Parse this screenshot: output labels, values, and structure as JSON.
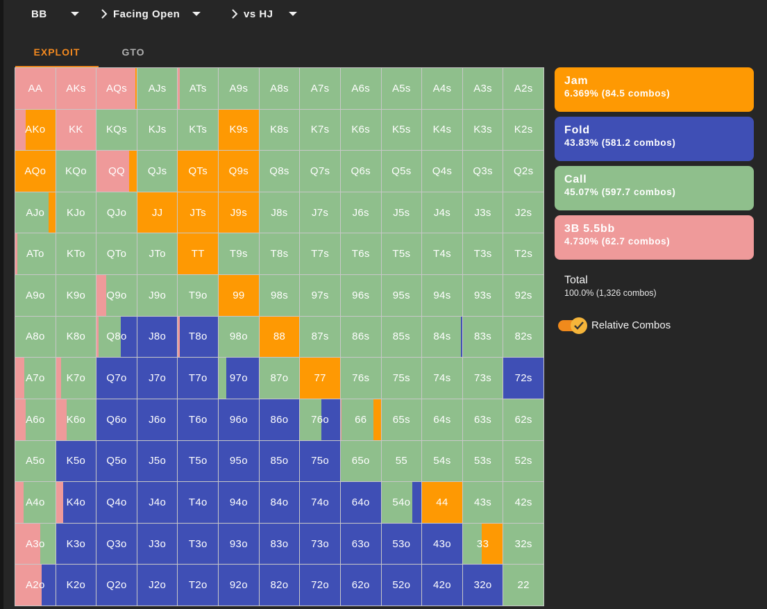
{
  "nav": {
    "position": "BB",
    "situation": "Facing Open",
    "opponent": "vs HJ"
  },
  "tabs": [
    {
      "label": "EXPLOIT",
      "active": true
    },
    {
      "label": "GTO",
      "active": false
    }
  ],
  "colors": {
    "jam": "#fe9903",
    "fold": "#3f4fb5",
    "call": "#8fbf8c",
    "raise": "#ef9a9a"
  },
  "actions": [
    {
      "name": "Jam",
      "stat": "6.369% (84.5 combos)",
      "color": "#fe9903"
    },
    {
      "name": "Fold",
      "stat": "43.83% (581.2 combos)",
      "color": "#3f4fb5"
    },
    {
      "name": "Call",
      "stat": "45.07% (597.7 combos)",
      "color": "#8fbf8c"
    },
    {
      "name": "3B 5.5bb",
      "stat": "4.730% (62.7 combos)",
      "color": "#ef9a9a"
    }
  ],
  "total": {
    "label": "Total",
    "stat": "100.0% (1,326 combos)"
  },
  "relative_combos": {
    "label": "Relative Combos",
    "enabled": true
  },
  "grid": {
    "ranks": [
      "A",
      "K",
      "Q",
      "J",
      "T",
      "9",
      "8",
      "7",
      "6",
      "5",
      "4",
      "3",
      "2"
    ],
    "strategy_order": [
      "raise",
      "call",
      "fold",
      "jam"
    ],
    "overrides": {
      "AA": {
        "raise": 1
      },
      "AKs": {
        "raise": 1
      },
      "AQs": {
        "raise": 0.96,
        "jam": 0.04
      },
      "ATs": {
        "raise": 0.04,
        "call": 0.96
      },
      "AKo": {
        "raise": 0.26,
        "jam": 0.74
      },
      "KK": {
        "raise": 1
      },
      "K9s": {
        "jam": 1
      },
      "AQo": {
        "jam": 1
      },
      "QQ": {
        "raise": 0.82,
        "jam": 0.18
      },
      "QTs": {
        "jam": 1
      },
      "Q9s": {
        "jam": 1
      },
      "AJo": {
        "call": 0.84,
        "jam": 0.16
      },
      "JJ": {
        "jam": 1
      },
      "JTs": {
        "jam": 1
      },
      "J9s": {
        "jam": 1
      },
      "ATo": {
        "raise": 0.05,
        "call": 0.95
      },
      "TT": {
        "jam": 1
      },
      "Q9o": {
        "raise": 0.24,
        "call": 0.76
      },
      "99": {
        "jam": 1
      },
      "Q8o": {
        "raise": 0.05,
        "call": 0.55,
        "fold": 0.4
      },
      "J8o": {
        "fold": 1
      },
      "T8o": {
        "raise": 0.05,
        "fold": 0.95
      },
      "88": {
        "jam": 1
      },
      "84s": {
        "call": 0.97,
        "fold": 0.03
      },
      "A7o": {
        "raise": 0.22,
        "call": 0.78
      },
      "K7o": {
        "raise": 0.12,
        "call": 0.88
      },
      "Q7o": {
        "fold": 1
      },
      "J7o": {
        "fold": 1
      },
      "T7o": {
        "fold": 1
      },
      "97o": {
        "call": 0.19,
        "fold": 0.81
      },
      "77": {
        "jam": 1
      },
      "72s": {
        "fold": 1
      },
      "A6o": {
        "raise": 0.26,
        "call": 0.74
      },
      "K6o": {
        "raise": 0.27,
        "call": 0.73
      },
      "Q6o": {
        "fold": 1
      },
      "J6o": {
        "fold": 1
      },
      "T6o": {
        "fold": 1
      },
      "96o": {
        "fold": 1
      },
      "86o": {
        "fold": 1
      },
      "76o": {
        "call": 0.53,
        "fold": 0.47
      },
      "66": {
        "raise": 0.02,
        "call": 0.8,
        "jam": 0.18
      },
      "K5o": {
        "fold": 1
      },
      "Q5o": {
        "fold": 1
      },
      "J5o": {
        "fold": 1
      },
      "T5o": {
        "fold": 1
      },
      "95o": {
        "fold": 1
      },
      "85o": {
        "fold": 1
      },
      "75o": {
        "fold": 1
      },
      "A4o": {
        "raise": 0.2,
        "call": 0.8
      },
      "K4o": {
        "raise": 0.18,
        "fold": 0.82
      },
      "Q4o": {
        "fold": 1
      },
      "J4o": {
        "fold": 1
      },
      "T4o": {
        "fold": 1
      },
      "94o": {
        "fold": 1
      },
      "84o": {
        "fold": 1
      },
      "74o": {
        "fold": 1
      },
      "64o": {
        "fold": 1
      },
      "54o": {
        "call": 0.78,
        "fold": 0.22
      },
      "44": {
        "jam": 1
      },
      "A3o": {
        "raise": 0.62,
        "call": 0.38
      },
      "K3o": {
        "fold": 1
      },
      "Q3o": {
        "fold": 1
      },
      "J3o": {
        "fold": 1
      },
      "T3o": {
        "fold": 1
      },
      "93o": {
        "fold": 1
      },
      "83o": {
        "fold": 1
      },
      "73o": {
        "fold": 1
      },
      "63o": {
        "fold": 1
      },
      "53o": {
        "fold": 1
      },
      "43o": {
        "fold": 1
      },
      "33": {
        "call": 0.48,
        "jam": 0.52
      },
      "A2o": {
        "raise": 0.66,
        "fold": 0.34
      },
      "K2o": {
        "fold": 1
      },
      "Q2o": {
        "fold": 1
      },
      "J2o": {
        "fold": 1
      },
      "T2o": {
        "fold": 1
      },
      "92o": {
        "fold": 1
      },
      "82o": {
        "fold": 1
      },
      "72o": {
        "fold": 1
      },
      "62o": {
        "fold": 1
      },
      "52o": {
        "fold": 1
      },
      "42o": {
        "fold": 1
      },
      "32o": {
        "fold": 1
      }
    },
    "default": {
      "call": 1
    }
  }
}
